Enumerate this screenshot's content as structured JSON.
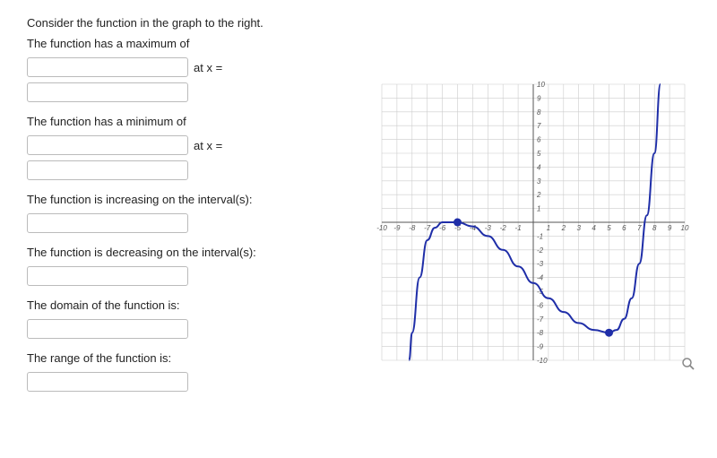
{
  "prompt_intro": "Consider the function in the graph to the right.",
  "q_max": {
    "label": "The function has a maximum of",
    "suffix": "at x ="
  },
  "q_min": {
    "label": "The function has a minimum of",
    "suffix": "at x ="
  },
  "q_inc": {
    "label": "The function is increasing on the interval(s):"
  },
  "q_dec": {
    "label": "The function is decreasing on the interval(s):"
  },
  "q_domain": {
    "label": "The domain of the function is:"
  },
  "q_range": {
    "label": "The range of the function is:"
  },
  "chart": {
    "type": "line",
    "xlim": [
      -10,
      10
    ],
    "ylim": [
      -10,
      10
    ],
    "xtick_step": 1,
    "ytick_step": 1,
    "background_color": "#ffffff",
    "grid_color": "#cccccc",
    "axis_color": "#555555",
    "tick_label_color": "#555555",
    "tick_label_fontsize": 8,
    "curve_color": "#1f2ea8",
    "curve_width": 2,
    "marker_fill": "#1f2ea8",
    "marker_radius": 4.5,
    "marked_points": [
      {
        "x": -5,
        "y": 0
      },
      {
        "x": 5,
        "y": -8
      }
    ],
    "curve_points": [
      {
        "x": -8.2,
        "y": -10
      },
      {
        "x": -8.0,
        "y": -8.0
      },
      {
        "x": -7.5,
        "y": -4.0
      },
      {
        "x": -7.0,
        "y": -1.3
      },
      {
        "x": -6.5,
        "y": -0.4
      },
      {
        "x": -6.0,
        "y": 0.0
      },
      {
        "x": -5.0,
        "y": 0.0
      },
      {
        "x": -4.0,
        "y": -0.3
      },
      {
        "x": -3.0,
        "y": -1.0
      },
      {
        "x": -2.0,
        "y": -2.0
      },
      {
        "x": -1.0,
        "y": -3.2
      },
      {
        "x": 0.0,
        "y": -4.4
      },
      {
        "x": 1.0,
        "y": -5.5
      },
      {
        "x": 2.0,
        "y": -6.5
      },
      {
        "x": 3.0,
        "y": -7.3
      },
      {
        "x": 4.0,
        "y": -7.8
      },
      {
        "x": 5.0,
        "y": -8.0
      },
      {
        "x": 5.5,
        "y": -7.8
      },
      {
        "x": 6.0,
        "y": -7.0
      },
      {
        "x": 6.5,
        "y": -5.5
      },
      {
        "x": 7.0,
        "y": -3.0
      },
      {
        "x": 7.5,
        "y": 0.5
      },
      {
        "x": 8.0,
        "y": 5.0
      },
      {
        "x": 8.4,
        "y": 10.0
      }
    ]
  }
}
